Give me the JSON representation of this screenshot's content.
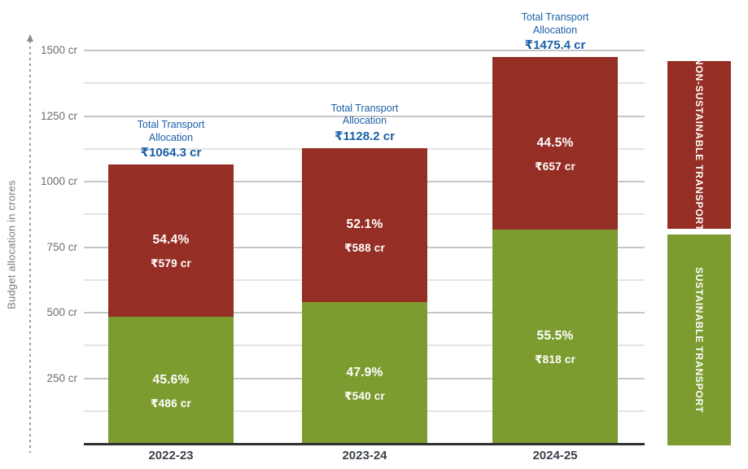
{
  "chart_data": {
    "type": "bar",
    "stacked": true,
    "title": "",
    "ylabel": "Budget allocation in crores",
    "xlabel": "",
    "categories": [
      "2022-23",
      "2023-24",
      "2024-25"
    ],
    "series": [
      {
        "name": "SUSTAINABLE TRANSPORT",
        "color": "#7d9c30",
        "values": [
          486,
          540,
          818
        ],
        "percent_labels": [
          "45.6%",
          "47.9%",
          "55.5%"
        ],
        "value_labels": [
          "₹486 cr",
          "₹540 cr",
          "₹818 cr"
        ]
      },
      {
        "name": "NON-SUSTAINABLE TRANSPORT",
        "color": "#952e24",
        "values": [
          579,
          588,
          657
        ],
        "percent_labels": [
          "54.4%",
          "52.1%",
          "44.5%"
        ],
        "value_labels": [
          "₹579 cr",
          "₹588 cr",
          "₹657 cr"
        ]
      }
    ],
    "totals": {
      "heading_lines": [
        "Total Transport",
        "Allocation"
      ],
      "values": [
        1064.3,
        1128.2,
        1475.4
      ],
      "amount_labels": [
        "₹1064.3 cr",
        "₹1128.2 cr",
        "₹1475.4 cr"
      ],
      "label_color": "#1a5fa8"
    },
    "y_axis": {
      "unit": "cr",
      "ylim": [
        0,
        1500
      ],
      "tick_values": [
        250,
        500,
        750,
        1000,
        1250,
        1500
      ],
      "tick_labels": [
        "250 cr",
        "500 cr",
        "750 cr",
        "1000 cr",
        "1250 cr",
        "1500 cr"
      ],
      "minor_grid_step": 125,
      "grid": true
    },
    "legend": {
      "position": "right",
      "items": [
        {
          "label": "NON-SUSTAINABLE TRANSPORT",
          "color": "#952e24"
        },
        {
          "label": "SUSTAINABLE TRANSPORT",
          "color": "#7d9c30"
        }
      ]
    },
    "colors": {
      "sustainable": "#7d9c30",
      "non_sustainable": "#952e24",
      "total_label_text": "#1a5fa8",
      "tick_text": "#6d6d6d",
      "category_text": "#3c434c",
      "grid_major": "#c6c6c6",
      "grid_minor": "#e4e4e4",
      "baseline": "#303030"
    }
  }
}
